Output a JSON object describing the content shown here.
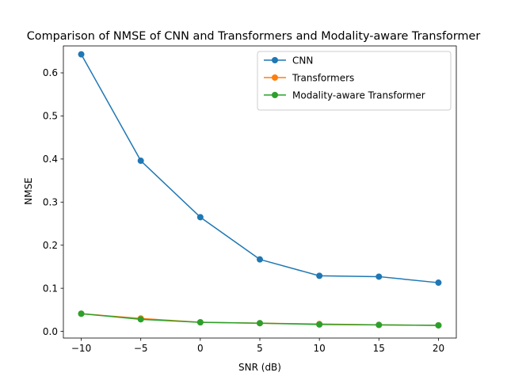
{
  "chart_data": {
    "type": "line",
    "title": "Comparison of NMSE of CNN and Transformers and Modality-aware Transformer",
    "xlabel": "SNR (dB)",
    "ylabel": "NMSE",
    "x": [
      -10,
      -5,
      0,
      5,
      10,
      15,
      20
    ],
    "xticks": [
      -10,
      -5,
      0,
      5,
      10,
      15,
      20
    ],
    "xtick_labels": [
      "−10",
      "−5",
      "0",
      "5",
      "10",
      "15",
      "20"
    ],
    "yticks": [
      0.0,
      0.1,
      0.2,
      0.3,
      0.4,
      0.5,
      0.6
    ],
    "ytick_labels": [
      "0.0",
      "0.1",
      "0.2",
      "0.3",
      "0.4",
      "0.5",
      "0.6"
    ],
    "xlim": [
      -11.5,
      21.5
    ],
    "ylim": [
      -0.0155,
      0.6625
    ],
    "grid": false,
    "legend_position": "top-right",
    "series": [
      {
        "name": "CNN",
        "color": "#1f77b4",
        "values": [
          0.643,
          0.396,
          0.265,
          0.167,
          0.129,
          0.127,
          0.113
        ]
      },
      {
        "name": "Transformers",
        "color": "#ff7f0e",
        "values": [
          0.041,
          0.03,
          0.021,
          0.019,
          0.017,
          0.015,
          0.014
        ]
      },
      {
        "name": "Modality-aware Transformer",
        "color": "#2ca02c",
        "values": [
          0.041,
          0.028,
          0.021,
          0.019,
          0.016,
          0.015,
          0.014
        ]
      }
    ]
  }
}
